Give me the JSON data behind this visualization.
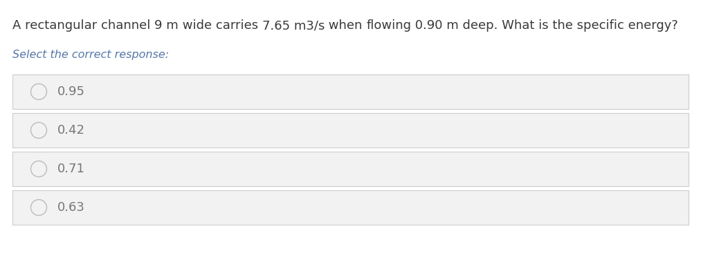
{
  "question_segments": [
    [
      "A rectangular channel ",
      "#3d3d3d"
    ],
    [
      "9 m",
      "#3d3d3d"
    ],
    [
      " wide carries ",
      "#3d3d3d"
    ],
    [
      "7.65 m3/s",
      "#3d3d3d"
    ],
    [
      " when flowing 0.90 m deep. What is the specific energy?",
      "#3d3d3d"
    ]
  ],
  "subtitle": "Select the correct response:",
  "subtitle_color": "#5577aa",
  "subtitle_style": "italic",
  "options": [
    "0.95",
    "0.42",
    "0.71",
    "0.63"
  ],
  "option_bg_color": "#f2f2f2",
  "option_text_color": "#777777",
  "option_border_color": "#cccccc",
  "radio_edge_color": "#bbbbbb",
  "background_color": "#ffffff",
  "question_fontsize": 13.0,
  "subtitle_fontsize": 11.5,
  "option_fontsize": 13.0,
  "fig_width": 10.13,
  "fig_height": 3.67,
  "dpi": 100
}
